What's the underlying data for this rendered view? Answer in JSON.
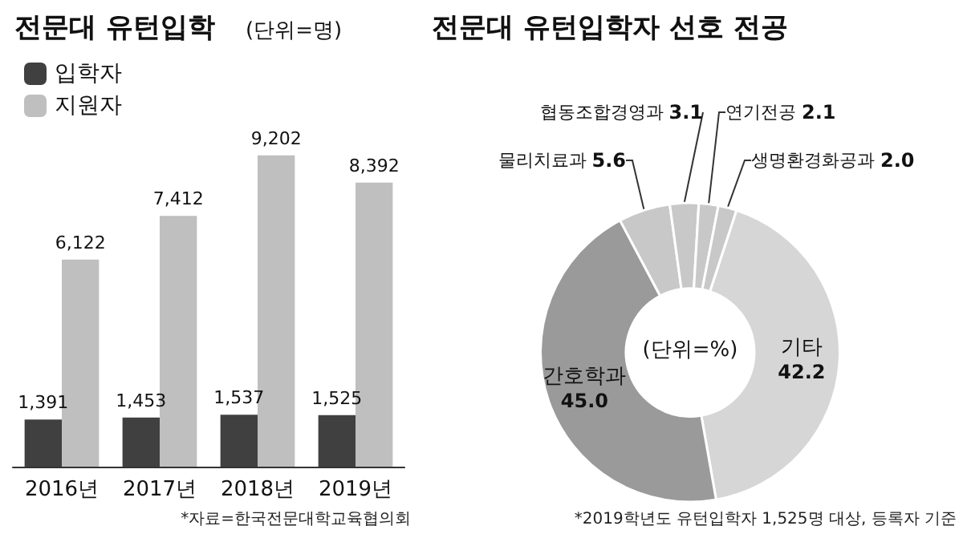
{
  "chart_data": [
    {
      "type": "bar",
      "title": "전문대 유턴입학",
      "subtitle": "(단위=명)",
      "categories": [
        "2016년",
        "2017년",
        "2018년",
        "2019년"
      ],
      "series": [
        {
          "name": "입학자",
          "color": "#404040",
          "values": [
            1391,
            1453,
            1537,
            1525
          ],
          "value_labels": [
            "1,391",
            "1,453",
            "1,537",
            "1,525"
          ]
        },
        {
          "name": "지원자",
          "color": "#bfbfbf",
          "values": [
            6122,
            7412,
            9202,
            8392
          ],
          "value_labels": [
            "6,122",
            "7,412",
            "9,202",
            "8,392"
          ]
        }
      ],
      "legend": "top left",
      "annotations": [
        "*자료=한국전문대학교육협의회"
      ]
    },
    {
      "type": "donut",
      "title": "전문대 유턴입학자 선호 전공",
      "categories": [
        "물리치료과",
        "협동조합경영과",
        "연기전공",
        "생명환경화공과",
        "기타",
        "간호학과"
      ],
      "values": [
        5.6,
        3.1,
        2.1,
        2.0,
        42.2,
        45.0
      ],
      "value_labels": [
        "5.6",
        "3.1",
        "2.1",
        "2.0",
        "42.2",
        "45.0"
      ],
      "colors": [
        "#c8c8c8",
        "#c8c8c8",
        "#c8c8c8",
        "#c8c8c8",
        "#d6d6d6",
        "#9a9a9a"
      ],
      "annotations": [
        "(단위=%)",
        "*2019학년도 유턴입학자 1,525명 대상, 등록자 기준"
      ]
    }
  ]
}
